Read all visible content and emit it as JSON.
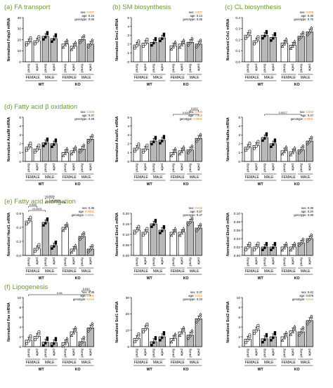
{
  "colors": {
    "accent": "#6a9a36",
    "pval_orange": "#e07b1a",
    "bar_white": "#ffffff",
    "bar_grey": "#b8b8b8",
    "bar_dark": "#2a2a2a",
    "axis": "#000000"
  },
  "sections": [
    {
      "label": "(a) FA transport"
    },
    {
      "label": "(b) SM biosynthesis"
    },
    {
      "label": "(c) CL biosynthesis"
    },
    {
      "label": "(d) Fatty acid β oxidation"
    },
    {
      "label": "(e) Fatty acid elongation"
    },
    {
      "label": "(f) Lipogenesis"
    }
  ],
  "common": {
    "xticks": [
      "young",
      "aged",
      "young",
      "aged",
      "young",
      "aged",
      "young",
      "aged"
    ],
    "sexes": [
      "FEMALE",
      "MALE",
      "FEMALE",
      "MALE"
    ],
    "genotypes": [
      "WT",
      "KO"
    ]
  },
  "chart_data": [
    {
      "type": "bar",
      "ylabel": "Normalized Fabp3 mRNA",
      "ylim": [
        0,
        40
      ],
      "yticks": [
        "0",
        "10",
        "20",
        "30",
        "40"
      ],
      "series": [
        {
          "values": [
            18,
            19,
            23,
            21,
            16,
            14,
            20,
            16
          ]
        }
      ],
      "stats": {
        "sex": "0.007",
        "age": "0.24",
        "genotype": "0.06"
      },
      "brackets": []
    },
    {
      "type": "bar",
      "ylabel": "Normalized Sms1 mRNA",
      "ylim": [
        0,
        5
      ],
      "yticks": [
        "0",
        "1",
        "2",
        "3",
        "4",
        "5"
      ],
      "series": [
        {
          "values": [
            1.9,
            2.1,
            2.2,
            2.7,
            1.8,
            2.0,
            2.2,
            2.0
          ]
        }
      ],
      "stats": {
        "sex": "0.007",
        "age": "0.14",
        "genotype": "0.25"
      },
      "brackets": []
    },
    {
      "type": "bar",
      "ylabel": "Normalized Crls1 mRNA",
      "ylim": [
        0,
        0.4
      ],
      "yticks": [
        "0.0",
        "0.1",
        "0.2",
        "0.3",
        "0.4"
      ],
      "series": [
        {
          "values": [
            0.24,
            0.19,
            0.24,
            0.22,
            0.17,
            0.15,
            0.23,
            0.27
          ]
        }
      ],
      "stats": {
        "sex": "0.005",
        "age": "0.35",
        "genotype": "0.76"
      },
      "brackets": []
    },
    {
      "type": "bar",
      "ylabel": "Normalized AcadM mRNA",
      "ylim": [
        0,
        5
      ],
      "yticks": [
        "0",
        "1",
        "2",
        "3",
        "4",
        "5"
      ],
      "series": [
        {
          "values": [
            1.6,
            1.4,
            2.1,
            2.0,
            1.0,
            1.2,
            1.4,
            2.5
          ]
        }
      ],
      "stats": {
        "sex": "0.006",
        "age": "0.47",
        "genotype": "0.28"
      },
      "brackets": []
    },
    {
      "type": "bar",
      "ylabel": "Normalized AcadVL mRNA",
      "ylim": [
        0,
        5
      ],
      "yticks": [
        "0",
        "1",
        "2",
        "3",
        "4",
        "5"
      ],
      "series": [
        {
          "values": [
            1.5,
            1.4,
            2.3,
            2.4,
            1.0,
            1.2,
            1.3,
            2.6
          ]
        }
      ],
      "stats": {
        "sex": "0.003",
        "age": "0.018",
        "genotype": "0.0001"
      },
      "brackets": [
        {
          "label": "0.044",
          "from": 4,
          "to": 7,
          "level": 0
        },
        {
          "label": "0.022",
          "from": 6,
          "to": 7,
          "level": 1
        }
      ]
    },
    {
      "type": "bar",
      "ylabel": "Normalized Hadha mRNA",
      "ylim": [
        0,
        5
      ],
      "yticks": [
        "0",
        "1",
        "2",
        "3",
        "4",
        "5"
      ],
      "series": [
        {
          "values": [
            1.6,
            1.8,
            2.7,
            2.0,
            1.2,
            1.1,
            1.3,
            2.3
          ]
        }
      ],
      "stats": {
        "sex": "0.002",
        "age": "0.47",
        "genotype": "0.0001"
      },
      "brackets": [
        {
          "label": "0.0017",
          "from": 2,
          "to": 6,
          "level": 0
        }
      ]
    },
    {
      "type": "bar",
      "ylabel": "Normalized Hacd1 mRNA",
      "ylim": [
        0,
        0.6
      ],
      "yticks": [
        "0.0",
        "0.2",
        "0.4",
        "0.6"
      ],
      "series": [
        {
          "values": [
            0.49,
            0.1,
            0.47,
            0.14,
            0.4,
            0.09,
            0.27,
            0.09
          ]
        }
      ],
      "stats": {
        "sex": "0.36",
        "age": "0.0001",
        "genotype": "0.0001"
      },
      "brackets": [
        {
          "label": "<0.0001",
          "from": 0,
          "to": 2,
          "level": 0
        },
        {
          "label": "0.048",
          "from": 0,
          "to": 1,
          "level": 1
        },
        {
          "label": "<0.0001",
          "from": 2,
          "to": 4,
          "level": 2
        },
        {
          "label": "<0.0001",
          "from": 2,
          "to": 3,
          "level": 3
        }
      ]
    },
    {
      "type": "bar",
      "ylabel": "Normalized Elovl1 mRNA",
      "ylim": [
        0,
        0.2
      ],
      "yticks": [
        "0.00",
        "0.05",
        "0.10",
        "0.15",
        "0.20"
      ],
      "series": [
        {
          "values": [
            0.12,
            0.11,
            0.15,
            0.12,
            0.11,
            0.11,
            0.16,
            0.13
          ]
        }
      ],
      "stats": {
        "sex": "0.002",
        "age": "0.67",
        "genotype": "0.47"
      },
      "brackets": []
    },
    {
      "type": "bar",
      "ylabel": "Normalized Elovl3 mRNA",
      "ylim": [
        0,
        0.1
      ],
      "yticks": [
        "0.00",
        "0.02",
        "0.04",
        "0.06",
        "0.08",
        "0.10"
      ],
      "series": [
        {
          "values": [
            0.02,
            0.02,
            0.02,
            0.02,
            0.02,
            0.02,
            0.03,
            0.04
          ]
        }
      ],
      "stats": {
        "sex": "0.35",
        "age": "0.20",
        "genotype": "0.88"
      },
      "brackets": []
    },
    {
      "type": "bar",
      "ylabel": "Normalized Fas mRNA",
      "ylim": [
        0,
        10
      ],
      "yticks": [
        "0",
        "2",
        "4",
        "6",
        "8",
        "10"
      ],
      "series": [
        {
          "values": [
            1.3,
            2.1,
            0.9,
            0.8,
            0.8,
            3.0,
            1.0,
            3.8
          ]
        }
      ],
      "stats": {
        "sex": "0.36",
        "age": "0.001",
        "genotype": "0.014"
      },
      "brackets": [
        {
          "label": "0.06",
          "from": 0,
          "to": 7,
          "level": 0
        },
        {
          "label": "0.042",
          "from": 6,
          "to": 7,
          "level": 1
        }
      ]
    },
    {
      "type": "bar",
      "ylabel": "Normalized Scd1 mRNA",
      "ylim": [
        0,
        30
      ],
      "yticks": [
        "0",
        "10",
        "20",
        "30"
      ],
      "series": [
        {
          "values": [
            5,
            11,
            3,
            6,
            5,
            9,
            7,
            17
          ]
        }
      ],
      "stats": {
        "sex": "0.37",
        "age": "0.012",
        "genotype": "0.23"
      },
      "brackets": []
    },
    {
      "type": "bar",
      "ylabel": "Normalized Scd2 mRNA",
      "ylim": [
        0,
        10
      ],
      "yticks": [
        "0",
        "2",
        "4",
        "6",
        "8",
        "10"
      ],
      "series": [
        {
          "values": [
            1.5,
            3.4,
            1.6,
            2.0,
            2.0,
            3.2,
            3.0,
            5.3
          ]
        }
      ],
      "stats": {
        "sex": "0.62",
        "age": "0.079",
        "genotype": "0.014"
      },
      "brackets": []
    }
  ]
}
